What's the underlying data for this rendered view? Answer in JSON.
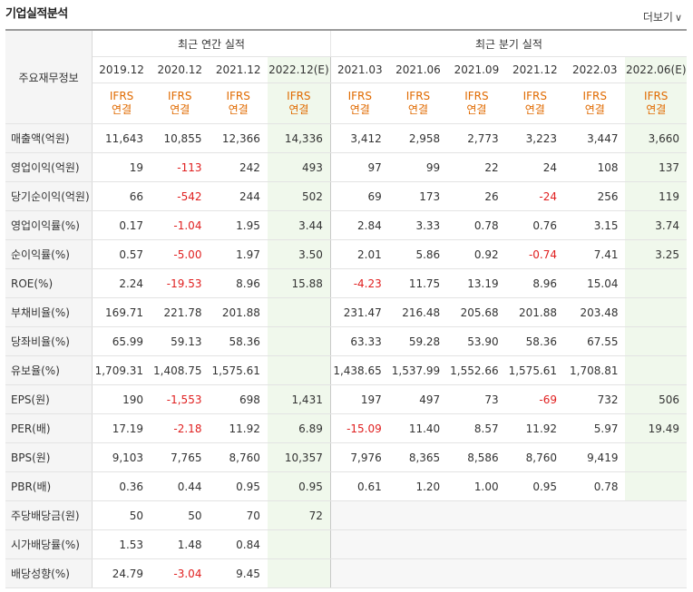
{
  "header": {
    "title": "기업실적분석",
    "more_label": "더보기",
    "more_icon": "chevron-down-icon"
  },
  "columns": {
    "label_header": "주요재무정보",
    "annual_group": "최근 연간 실적",
    "quarter_group": "최근 분기 실적",
    "periods": [
      "2019.12",
      "2020.12",
      "2021.12",
      "2022.12(E)",
      "2021.03",
      "2021.06",
      "2021.09",
      "2021.12",
      "2022.03",
      "2022.06(E)"
    ],
    "ifrs_top": "IFRS",
    "ifrs_bottom": "연결"
  },
  "rows": [
    {
      "label": "매출액(억원)",
      "values": [
        "11,643",
        "10,855",
        "12,366",
        "14,336",
        "3,412",
        "2,958",
        "2,773",
        "3,223",
        "3,447",
        "3,660"
      ]
    },
    {
      "label": "영업이익(억원)",
      "values": [
        "19",
        "-113",
        "242",
        "493",
        "97",
        "99",
        "22",
        "24",
        "108",
        "137"
      ]
    },
    {
      "label": "당기순이익(억원)",
      "values": [
        "66",
        "-542",
        "244",
        "502",
        "69",
        "173",
        "26",
        "-24",
        "256",
        "119"
      ]
    },
    {
      "label": "영업이익률(%)",
      "values": [
        "0.17",
        "-1.04",
        "1.95",
        "3.44",
        "2.84",
        "3.33",
        "0.78",
        "0.76",
        "3.15",
        "3.74"
      ]
    },
    {
      "label": "순이익률(%)",
      "values": [
        "0.57",
        "-5.00",
        "1.97",
        "3.50",
        "2.01",
        "5.86",
        "0.92",
        "-0.74",
        "7.41",
        "3.25"
      ]
    },
    {
      "label": "ROE(%)",
      "values": [
        "2.24",
        "-19.53",
        "8.96",
        "15.88",
        "-4.23",
        "11.75",
        "13.19",
        "8.96",
        "15.04",
        ""
      ]
    },
    {
      "label": "부채비율(%)",
      "values": [
        "169.71",
        "221.78",
        "201.88",
        "",
        "231.47",
        "216.48",
        "205.68",
        "201.88",
        "203.48",
        ""
      ]
    },
    {
      "label": "당좌비율(%)",
      "values": [
        "65.99",
        "59.13",
        "58.36",
        "",
        "63.33",
        "59.28",
        "53.90",
        "58.36",
        "67.55",
        ""
      ]
    },
    {
      "label": "유보율(%)",
      "values": [
        "1,709.31",
        "1,408.75",
        "1,575.61",
        "",
        "1,438.65",
        "1,537.99",
        "1,552.66",
        "1,575.61",
        "1,708.81",
        ""
      ]
    },
    {
      "label": "EPS(원)",
      "values": [
        "190",
        "-1,553",
        "698",
        "1,431",
        "197",
        "497",
        "73",
        "-69",
        "732",
        "506"
      ]
    },
    {
      "label": "PER(배)",
      "values": [
        "17.19",
        "-2.18",
        "11.92",
        "6.89",
        "-15.09",
        "11.40",
        "8.57",
        "11.92",
        "5.97",
        "19.49"
      ]
    },
    {
      "label": "BPS(원)",
      "values": [
        "9,103",
        "7,765",
        "8,760",
        "10,357",
        "7,976",
        "8,365",
        "8,586",
        "8,760",
        "9,419",
        ""
      ]
    },
    {
      "label": "PBR(배)",
      "values": [
        "0.36",
        "0.44",
        "0.95",
        "0.95",
        "0.61",
        "1.20",
        "1.00",
        "0.95",
        "0.78",
        ""
      ]
    },
    {
      "label": "주당배당금(원)",
      "values": [
        "50",
        "50",
        "70",
        "72",
        "",
        "",
        "",
        "",
        "",
        ""
      ]
    },
    {
      "label": "시가배당률(%)",
      "values": [
        "1.53",
        "1.48",
        "0.84",
        "",
        "",
        "",
        "",
        "",
        "",
        ""
      ]
    },
    {
      "label": "배당성향(%)",
      "values": [
        "24.79",
        "-3.04",
        "9.45",
        "",
        "",
        "",
        "",
        "",
        "",
        ""
      ]
    }
  ],
  "colors": {
    "negative": "#e02020",
    "ifrs": "#e06a00",
    "estimate_bg": "#f0f8ec",
    "label_bg": "#f5f5f5"
  }
}
